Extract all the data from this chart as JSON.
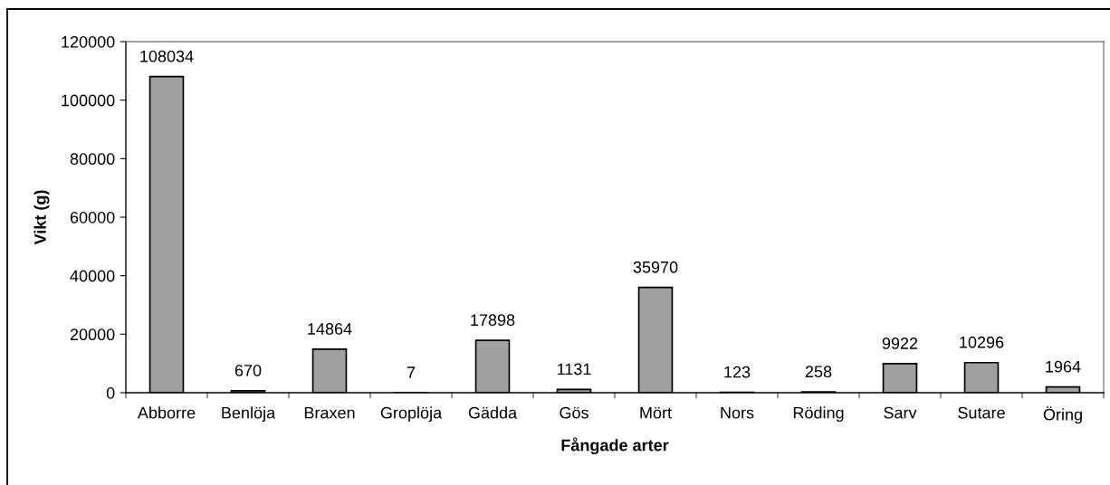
{
  "chart_data": {
    "type": "bar",
    "xlabel": "Fångade arter",
    "ylabel": "Vikt (g)",
    "categories": [
      "Abborre",
      "Benlöja",
      "Braxen",
      "Groplöja",
      "Gädda",
      "Gös",
      "Mört",
      "Nors",
      "Röding",
      "Sarv",
      "Sutare",
      "Öring"
    ],
    "values": [
      108034,
      670,
      14864,
      7,
      17898,
      1131,
      35970,
      123,
      258,
      9922,
      10296,
      1964
    ],
    "color": "#a0a0a0",
    "ylim": [
      0,
      120000
    ],
    "yticks": [
      0,
      20000,
      40000,
      60000,
      80000,
      100000,
      120000
    ],
    "grid": false,
    "legend": false,
    "data_labels": true
  }
}
